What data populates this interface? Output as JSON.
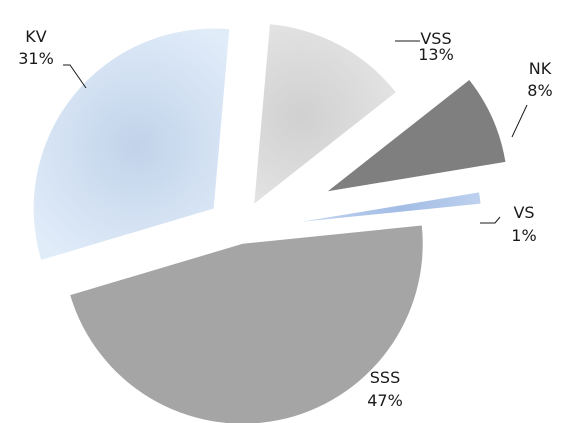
{
  "chart_data": {
    "type": "pie",
    "exploded": true,
    "series": [
      {
        "slices": [
          {
            "label": "VSS",
            "value": 13,
            "value_label": "13%",
            "color": "#d9d9d9"
          },
          {
            "label": "NK",
            "value": 8,
            "value_label": "8%",
            "color": "#7f7f7f"
          },
          {
            "label": "VS",
            "value": 1,
            "value_label": "1%",
            "color": "#a9c4ee"
          },
          {
            "label": "SSS",
            "value": 47,
            "value_label": "47%",
            "color": "#a5a5a5"
          },
          {
            "label": "KV",
            "value": 31,
            "value_label": "31%",
            "color": "#c9dcf4"
          }
        ]
      }
    ]
  }
}
